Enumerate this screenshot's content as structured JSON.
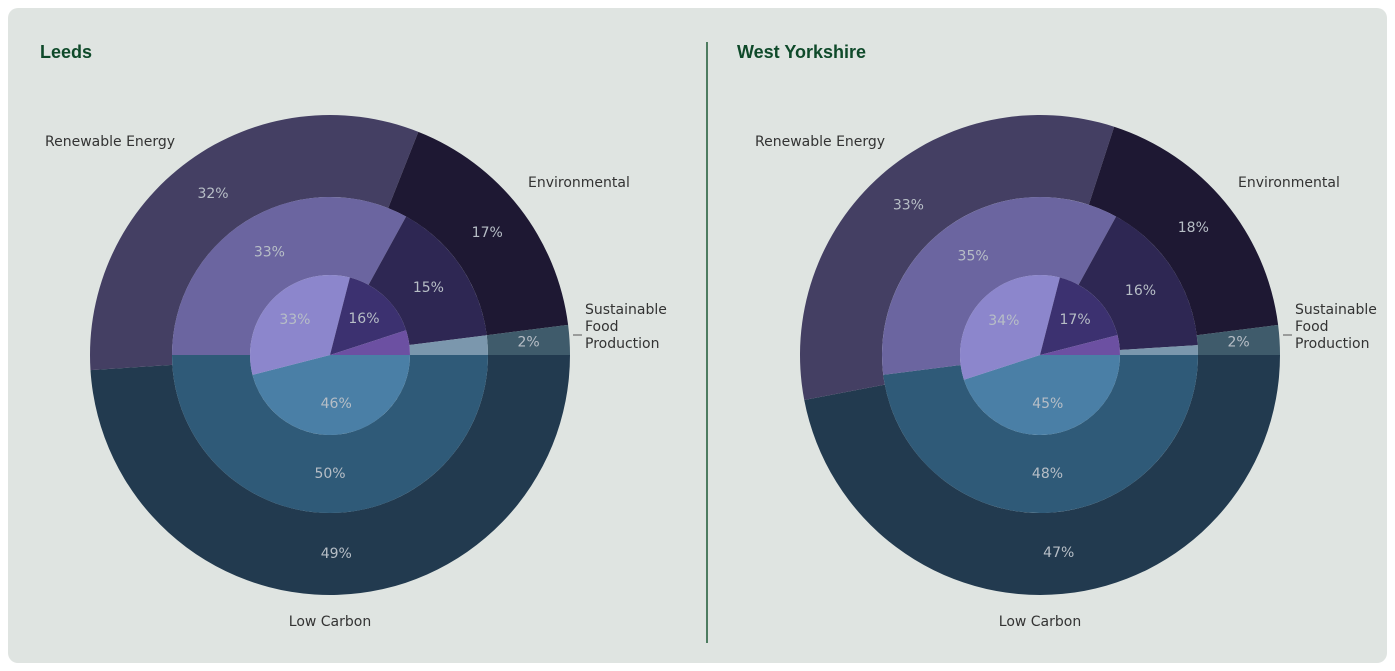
{
  "chart_data": [
    {
      "type": "pie",
      "title": "Leeds",
      "categories": [
        "Low Carbon",
        "Renewable Energy",
        "Environmental",
        "Sustainable Food Production"
      ],
      "series": [
        {
          "values": [
            49,
            32,
            17,
            2
          ],
          "value_labels": [
            "49%",
            "32%",
            "17%",
            "2%"
          ],
          "colors": [
            "#223a4f",
            "#443f63",
            "#1e1833",
            "#3f5b6b"
          ]
        },
        {
          "values": [
            50,
            33,
            15,
            2
          ],
          "value_labels": [
            "50%",
            "33%",
            "15%",
            null
          ],
          "colors": [
            "#2f5a78",
            "#6b65a0",
            "#2e2753",
            "#7b97ad"
          ]
        },
        {
          "values": [
            46,
            33,
            16,
            5
          ],
          "value_labels": [
            "46%",
            "33%",
            "16%",
            null
          ],
          "colors": [
            "#4a7fa6",
            "#8c86cc",
            "#3c3170",
            "#6c50a2"
          ]
        }
      ]
    },
    {
      "type": "pie",
      "title": "West Yorkshire",
      "categories": [
        "Low Carbon",
        "Renewable Energy",
        "Environmental",
        "Sustainable Food Production"
      ],
      "series": [
        {
          "values": [
            47,
            33,
            18,
            2
          ],
          "value_labels": [
            "47%",
            "33%",
            "18%",
            "2%"
          ],
          "colors": [
            "#223a4f",
            "#443f63",
            "#1e1833",
            "#3f5b6b"
          ]
        },
        {
          "values": [
            48,
            35,
            16,
            1
          ],
          "value_labels": [
            "48%",
            "35%",
            "16%",
            null
          ],
          "colors": [
            "#2f5a78",
            "#6b65a0",
            "#2e2753",
            "#7b97ad"
          ]
        },
        {
          "values": [
            45,
            34,
            17,
            4
          ],
          "value_labels": [
            "45%",
            "34%",
            "17%",
            null
          ],
          "colors": [
            "#4a7fa6",
            "#8c86cc",
            "#3c3170",
            "#6c50a2"
          ]
        }
      ]
    }
  ]
}
